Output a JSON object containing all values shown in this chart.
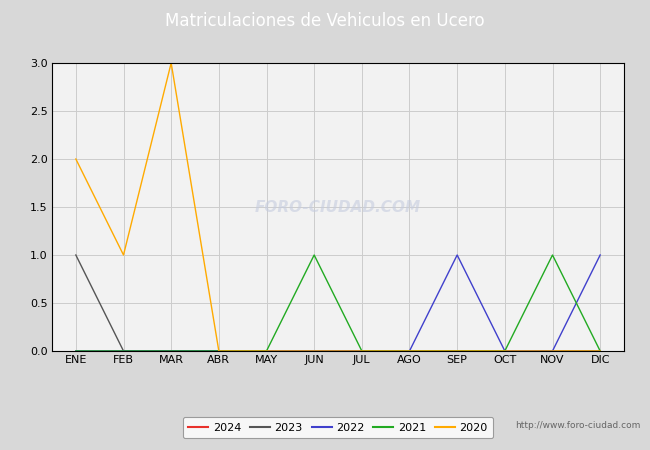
{
  "title": "Matriculaciones de Vehiculos en Ucero",
  "title_color": "#ffffff",
  "title_bg_color": "#4f7bc8",
  "months": [
    "ENE",
    "FEB",
    "MAR",
    "ABR",
    "MAY",
    "JUN",
    "JUL",
    "AGO",
    "SEP",
    "OCT",
    "NOV",
    "DIC"
  ],
  "series": {
    "2024": {
      "color": "#e8302a",
      "data": [
        0,
        0,
        0,
        0,
        0,
        0,
        0,
        0,
        0,
        0,
        0,
        0
      ]
    },
    "2023": {
      "color": "#555555",
      "data": [
        1,
        0,
        0,
        0,
        0,
        0,
        0,
        0,
        0,
        0,
        0,
        0
      ]
    },
    "2022": {
      "color": "#4040cc",
      "data": [
        0,
        0,
        0,
        0,
        0,
        0,
        0,
        0,
        1,
        0,
        0,
        1
      ]
    },
    "2021": {
      "color": "#22aa22",
      "data": [
        0,
        0,
        0,
        0,
        0,
        1,
        0,
        0,
        0,
        0,
        1,
        0
      ]
    },
    "2020": {
      "color": "#ffaa00",
      "data": [
        2,
        1,
        3,
        0,
        0,
        0,
        0,
        0,
        0,
        0,
        0,
        0
      ]
    }
  },
  "legend_order": [
    "2024",
    "2023",
    "2022",
    "2021",
    "2020"
  ],
  "ylim": [
    0,
    3.0
  ],
  "yticks": [
    0.0,
    0.5,
    1.0,
    1.5,
    2.0,
    2.5,
    3.0
  ],
  "outer_bg_color": "#d8d8d8",
  "plot_bg_color": "#f2f2f2",
  "left_stripe_color": "#4f7bc8",
  "watermark_text": "FORO-CIUDAD.COM",
  "watermark_url": "http://www.foro-ciudad.com",
  "grid_color": "#cccccc",
  "title_fontsize": 12,
  "tick_fontsize": 8,
  "legend_fontsize": 8
}
